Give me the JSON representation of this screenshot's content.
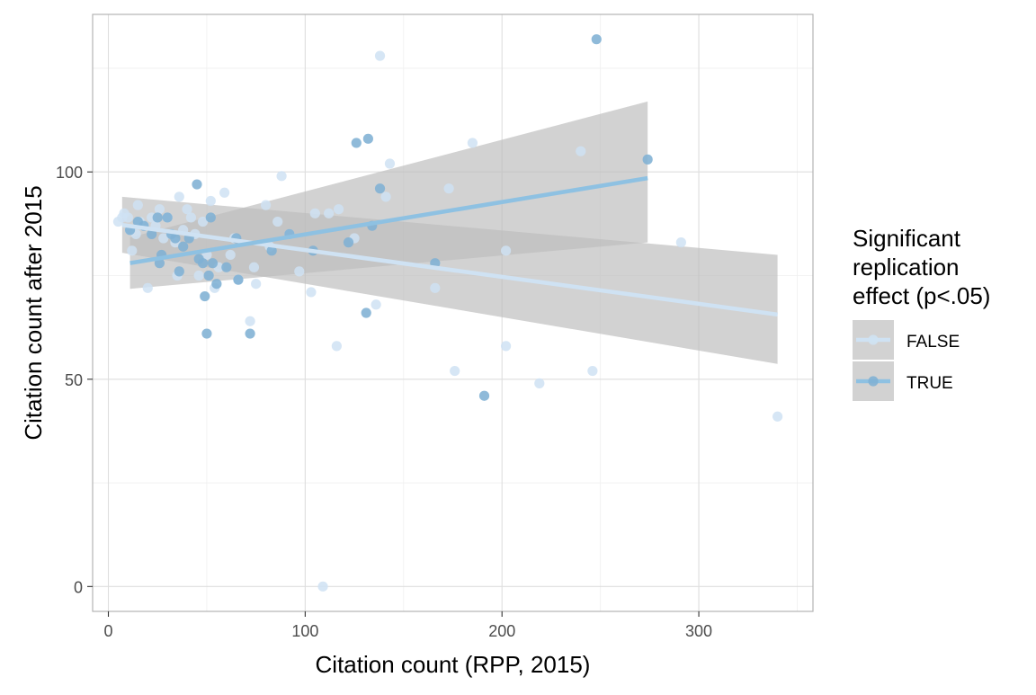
{
  "chart_data": {
    "type": "scatter",
    "xlabel": "Citation count (RPP, 2015)",
    "ylabel": "Citation count after 2015",
    "xlim": [
      -8,
      358
    ],
    "ylim": [
      -6,
      138
    ],
    "x_ticks": [
      "0",
      "100",
      "200",
      "300"
    ],
    "x_tick_values": [
      0,
      100,
      200,
      300
    ],
    "y_ticks": [
      "0",
      "50",
      "100"
    ],
    "y_tick_values": [
      0,
      50,
      100
    ],
    "grid": true,
    "legend": {
      "title_lines": [
        "Significant",
        "replication",
        "effect (p<.05)"
      ],
      "position": "right"
    },
    "colors": {
      "FALSE": "#cfe2f3",
      "TRUE": "#7fb0d4",
      "TRUE_line": "#8ec1e2",
      "ribbon": "#bdbdbd",
      "grid_major": "#dedede",
      "grid_minor": "#efefef",
      "panel_border": "#b3b3b3"
    },
    "series": [
      {
        "name": "FALSE",
        "points": [
          [
            5,
            88
          ],
          [
            7,
            89
          ],
          [
            8,
            90
          ],
          [
            10,
            89
          ],
          [
            11,
            86
          ],
          [
            12,
            81
          ],
          [
            14,
            85
          ],
          [
            15,
            92
          ],
          [
            16,
            88
          ],
          [
            18,
            87
          ],
          [
            20,
            72
          ],
          [
            22,
            89
          ],
          [
            24,
            87
          ],
          [
            26,
            91
          ],
          [
            28,
            84
          ],
          [
            30,
            89
          ],
          [
            32,
            85
          ],
          [
            34,
            83
          ],
          [
            35,
            75
          ],
          [
            36,
            94
          ],
          [
            38,
            86
          ],
          [
            40,
            91
          ],
          [
            42,
            89
          ],
          [
            44,
            85
          ],
          [
            46,
            75
          ],
          [
            48,
            88
          ],
          [
            50,
            80
          ],
          [
            52,
            93
          ],
          [
            54,
            72
          ],
          [
            56,
            77
          ],
          [
            59,
            95
          ],
          [
            62,
            80
          ],
          [
            64,
            84
          ],
          [
            66,
            74
          ],
          [
            72,
            64
          ],
          [
            74,
            77
          ],
          [
            75,
            73
          ],
          [
            80,
            92
          ],
          [
            82,
            82
          ],
          [
            86,
            88
          ],
          [
            88,
            99
          ],
          [
            92,
            85
          ],
          [
            97,
            76
          ],
          [
            103,
            71
          ],
          [
            105,
            90
          ],
          [
            109,
            0
          ],
          [
            112,
            90
          ],
          [
            116,
            58
          ],
          [
            117,
            91
          ],
          [
            125,
            84
          ],
          [
            136,
            68
          ],
          [
            138,
            128
          ],
          [
            141,
            94
          ],
          [
            143,
            102
          ],
          [
            166,
            72
          ],
          [
            173,
            96
          ],
          [
            176,
            52
          ],
          [
            185,
            107
          ],
          [
            202,
            81
          ],
          [
            202,
            58
          ],
          [
            219,
            49
          ],
          [
            240,
            105
          ],
          [
            246,
            52
          ],
          [
            291,
            83
          ],
          [
            340,
            41
          ]
        ],
        "trend": {
          "x": [
            7,
            340
          ],
          "y": [
            87.2,
            65.6
          ]
        },
        "band": {
          "x": [
            7,
            340
          ],
          "lower": [
            80.5,
            53.7
          ],
          "upper": [
            94.0,
            80.0
          ]
        }
      },
      {
        "name": "TRUE",
        "points": [
          [
            11,
            86
          ],
          [
            15,
            88
          ],
          [
            18,
            87
          ],
          [
            22,
            85
          ],
          [
            25,
            89
          ],
          [
            26,
            78
          ],
          [
            27,
            80
          ],
          [
            30,
            89
          ],
          [
            32,
            85
          ],
          [
            34,
            84
          ],
          [
            36,
            76
          ],
          [
            38,
            82
          ],
          [
            41,
            84
          ],
          [
            45,
            97
          ],
          [
            46,
            79
          ],
          [
            48,
            78
          ],
          [
            49,
            70
          ],
          [
            50,
            61
          ],
          [
            51,
            75
          ],
          [
            52,
            89
          ],
          [
            53,
            78
          ],
          [
            55,
            73
          ],
          [
            60,
            77
          ],
          [
            65,
            84
          ],
          [
            66,
            74
          ],
          [
            72,
            61
          ],
          [
            83,
            81
          ],
          [
            92,
            85
          ],
          [
            104,
            81
          ],
          [
            122,
            83
          ],
          [
            126,
            107
          ],
          [
            131,
            66
          ],
          [
            132,
            108
          ],
          [
            134,
            87
          ],
          [
            138,
            96
          ],
          [
            166,
            78
          ],
          [
            191,
            46
          ],
          [
            248,
            132
          ],
          [
            274,
            103
          ]
        ],
        "trend": {
          "x": [
            11,
            274
          ],
          "y": [
            78.0,
            98.5
          ]
        },
        "band": {
          "x": [
            11,
            274
          ],
          "lower": [
            71.8,
            83.0
          ],
          "upper": [
            84.2,
            117.0
          ]
        }
      }
    ]
  }
}
